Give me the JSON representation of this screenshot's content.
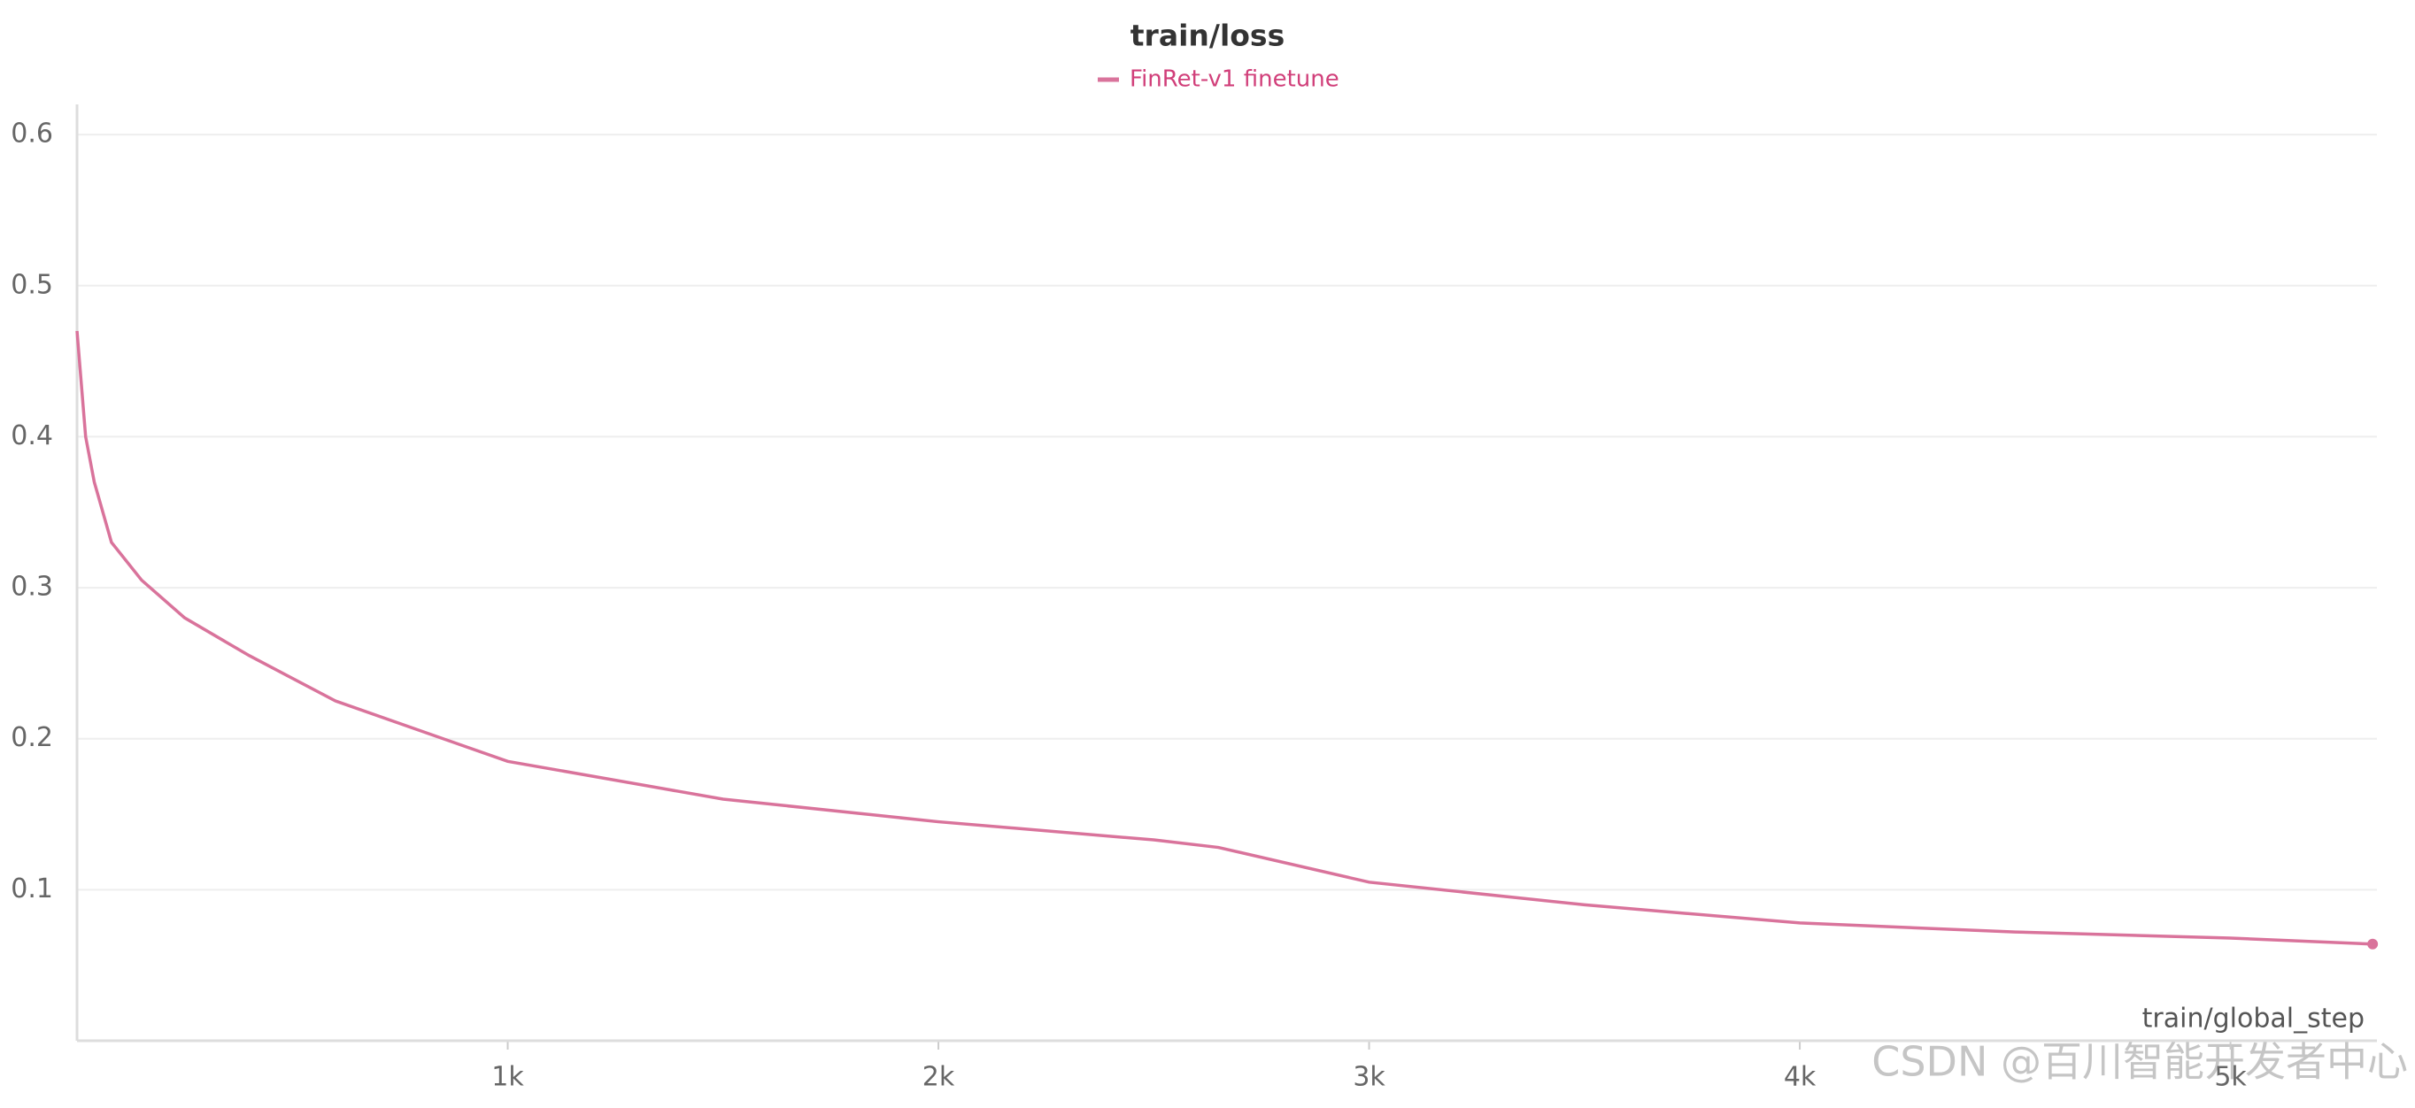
{
  "chart_data": {
    "type": "line",
    "title": "train/loss",
    "x_label": "train/global_step",
    "x": [
      0,
      20,
      40,
      80,
      150,
      250,
      400,
      600,
      900,
      1000,
      1500,
      2000,
      2500,
      2650,
      3000,
      3500,
      4000,
      4500,
      5000,
      5330
    ],
    "series": [
      {
        "name": "FinRet-v1 finetune",
        "color": "#d9739b",
        "values": [
          0.47,
          0.4,
          0.37,
          0.33,
          0.305,
          0.28,
          0.255,
          0.225,
          0.195,
          0.185,
          0.16,
          0.145,
          0.133,
          0.128,
          0.105,
          0.09,
          0.078,
          0.072,
          0.068,
          0.064
        ]
      }
    ],
    "xlim": [
      0,
      5340
    ],
    "ylim": [
      0,
      0.62
    ],
    "xticks": [
      {
        "value": 1000,
        "label": "1k"
      },
      {
        "value": 2000,
        "label": "2k"
      },
      {
        "value": 3000,
        "label": "3k"
      },
      {
        "value": 4000,
        "label": "4k"
      },
      {
        "value": 5000,
        "label": "5k"
      }
    ],
    "yticks": [
      0.1,
      0.2,
      0.3,
      0.4,
      0.5,
      0.6
    ],
    "grid": true
  },
  "watermark": "CSDN @百川智能开发者中心"
}
